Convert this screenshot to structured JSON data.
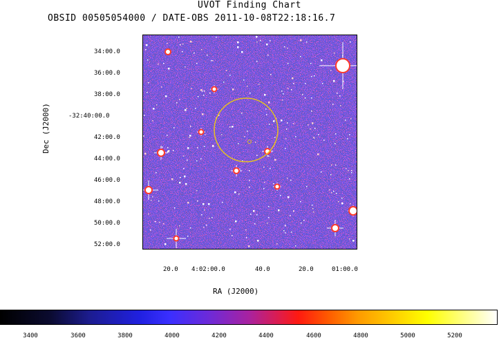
{
  "header": {
    "title": "UVOT Finding Chart",
    "subtitle": "OBSID 00505054000 / DATE-OBS 2011-10-08T22:18:16.7"
  },
  "axes": {
    "dec_label": "Dec  (J2000)",
    "ra_label": "RA  (J2000)",
    "dec_ticks": [
      "34:00.0",
      "36:00.0",
      "38:00.0",
      "-32:40:00.0",
      "42:00.0",
      "44:00.0",
      "46:00.0",
      "48:00.0",
      "50:00.0",
      "52:00.0"
    ],
    "ra_ticks": [
      "20.0",
      "4:02:00.0",
      "40.0",
      "20.0",
      "01:00.0"
    ]
  },
  "colorbar": {
    "ticks": [
      "3400",
      "3600",
      "3800",
      "4000",
      "4200",
      "4400",
      "4600",
      "4800",
      "5000",
      "5200"
    ]
  },
  "colors": {
    "background_noise_dark": "#1a1aa0",
    "background_noise_bright": "#e0203a",
    "circle": "#e8c020",
    "stars": "#ffffff"
  }
}
